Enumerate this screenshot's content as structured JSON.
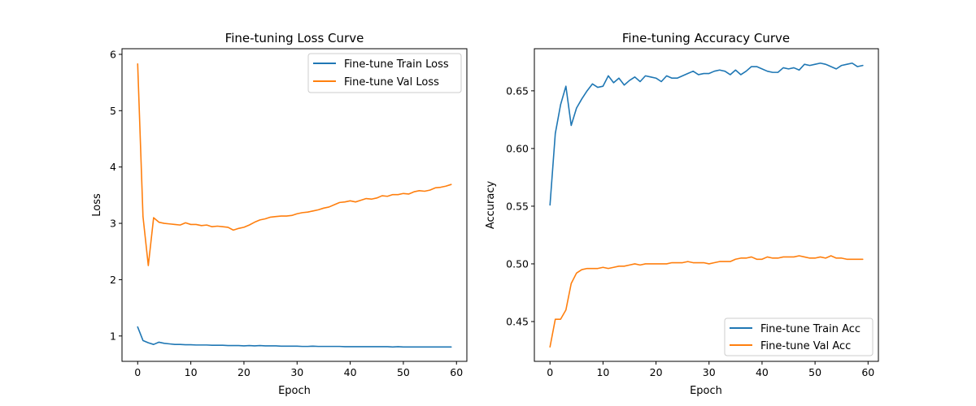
{
  "chart_data": [
    {
      "type": "line",
      "title": "Fine-tuning Loss Curve",
      "xlabel": "Epoch",
      "ylabel": "Loss",
      "xlim": [
        -2.95,
        61.95
      ],
      "ylim": [
        0.55,
        6.1
      ],
      "xticks": [
        0,
        10,
        20,
        30,
        40,
        50,
        60
      ],
      "yticks": [
        1,
        2,
        3,
        4,
        5,
        6
      ],
      "legend_position": "upper-right",
      "grid": false,
      "x": [
        0,
        1,
        2,
        3,
        4,
        5,
        6,
        7,
        8,
        9,
        10,
        11,
        12,
        13,
        14,
        15,
        16,
        17,
        18,
        19,
        20,
        21,
        22,
        23,
        24,
        25,
        26,
        27,
        28,
        29,
        30,
        31,
        32,
        33,
        34,
        35,
        36,
        37,
        38,
        39,
        40,
        41,
        42,
        43,
        44,
        45,
        46,
        47,
        48,
        49,
        50,
        51,
        52,
        53,
        54,
        55,
        56,
        57,
        58,
        59
      ],
      "series": [
        {
          "name": "Fine-tune Train Loss",
          "color": "#1f77b4",
          "values": [
            1.16,
            0.92,
            0.88,
            0.85,
            0.89,
            0.87,
            0.86,
            0.85,
            0.85,
            0.845,
            0.845,
            0.84,
            0.84,
            0.84,
            0.835,
            0.835,
            0.835,
            0.83,
            0.83,
            0.83,
            0.825,
            0.83,
            0.825,
            0.83,
            0.825,
            0.825,
            0.825,
            0.82,
            0.82,
            0.82,
            0.82,
            0.815,
            0.815,
            0.82,
            0.815,
            0.815,
            0.815,
            0.815,
            0.815,
            0.81,
            0.81,
            0.81,
            0.81,
            0.81,
            0.81,
            0.81,
            0.81,
            0.81,
            0.805,
            0.81,
            0.805,
            0.805,
            0.805,
            0.805,
            0.805,
            0.805,
            0.805,
            0.805,
            0.805,
            0.805
          ]
        },
        {
          "name": "Fine-tune Val Loss",
          "color": "#ff7f0e",
          "values": [
            5.83,
            3.12,
            2.25,
            3.1,
            3.02,
            3.0,
            2.99,
            2.98,
            2.97,
            3.01,
            2.98,
            2.98,
            2.96,
            2.97,
            2.94,
            2.95,
            2.94,
            2.93,
            2.88,
            2.91,
            2.93,
            2.97,
            3.02,
            3.06,
            3.08,
            3.11,
            3.12,
            3.13,
            3.13,
            3.14,
            3.17,
            3.19,
            3.2,
            3.22,
            3.24,
            3.27,
            3.29,
            3.33,
            3.37,
            3.38,
            3.4,
            3.38,
            3.41,
            3.44,
            3.43,
            3.45,
            3.49,
            3.48,
            3.51,
            3.51,
            3.53,
            3.52,
            3.56,
            3.58,
            3.57,
            3.59,
            3.63,
            3.64,
            3.66,
            3.69
          ]
        }
      ]
    },
    {
      "type": "line",
      "title": "Fine-tuning Accuracy Curve",
      "xlabel": "Epoch",
      "ylabel": "Accuracy",
      "xlim": [
        -2.95,
        61.95
      ],
      "ylim": [
        0.4155,
        0.6865
      ],
      "xticks": [
        0,
        10,
        20,
        30,
        40,
        50,
        60
      ],
      "yticks": [
        0.45,
        0.5,
        0.55,
        0.6,
        0.65
      ],
      "legend_position": "lower-right",
      "grid": false,
      "x": [
        0,
        1,
        2,
        3,
        4,
        5,
        6,
        7,
        8,
        9,
        10,
        11,
        12,
        13,
        14,
        15,
        16,
        17,
        18,
        19,
        20,
        21,
        22,
        23,
        24,
        25,
        26,
        27,
        28,
        29,
        30,
        31,
        32,
        33,
        34,
        35,
        36,
        37,
        38,
        39,
        40,
        41,
        42,
        43,
        44,
        45,
        46,
        47,
        48,
        49,
        50,
        51,
        52,
        53,
        54,
        55,
        56,
        57,
        58,
        59
      ],
      "series": [
        {
          "name": "Fine-tune Train Acc",
          "color": "#1f77b4",
          "values": [
            0.551,
            0.613,
            0.638,
            0.654,
            0.62,
            0.635,
            0.643,
            0.65,
            0.656,
            0.653,
            0.654,
            0.663,
            0.657,
            0.661,
            0.655,
            0.659,
            0.662,
            0.658,
            0.663,
            0.662,
            0.661,
            0.658,
            0.663,
            0.661,
            0.661,
            0.663,
            0.665,
            0.667,
            0.664,
            0.665,
            0.665,
            0.667,
            0.668,
            0.667,
            0.664,
            0.668,
            0.664,
            0.667,
            0.671,
            0.671,
            0.669,
            0.667,
            0.666,
            0.666,
            0.67,
            0.669,
            0.67,
            0.668,
            0.673,
            0.672,
            0.673,
            0.674,
            0.673,
            0.671,
            0.669,
            0.672,
            0.673,
            0.674,
            0.671,
            0.672
          ]
        },
        {
          "name": "Fine-tune Val Acc",
          "color": "#ff7f0e",
          "values": [
            0.428,
            0.452,
            0.452,
            0.46,
            0.483,
            0.492,
            0.495,
            0.496,
            0.496,
            0.496,
            0.497,
            0.496,
            0.497,
            0.498,
            0.498,
            0.499,
            0.5,
            0.499,
            0.5,
            0.5,
            0.5,
            0.5,
            0.5,
            0.501,
            0.501,
            0.501,
            0.502,
            0.501,
            0.501,
            0.501,
            0.5,
            0.501,
            0.502,
            0.502,
            0.502,
            0.504,
            0.505,
            0.505,
            0.506,
            0.504,
            0.504,
            0.506,
            0.505,
            0.505,
            0.506,
            0.506,
            0.506,
            0.507,
            0.506,
            0.505,
            0.505,
            0.506,
            0.505,
            0.507,
            0.505,
            0.505,
            0.504,
            0.504,
            0.504,
            0.504
          ]
        }
      ]
    }
  ]
}
